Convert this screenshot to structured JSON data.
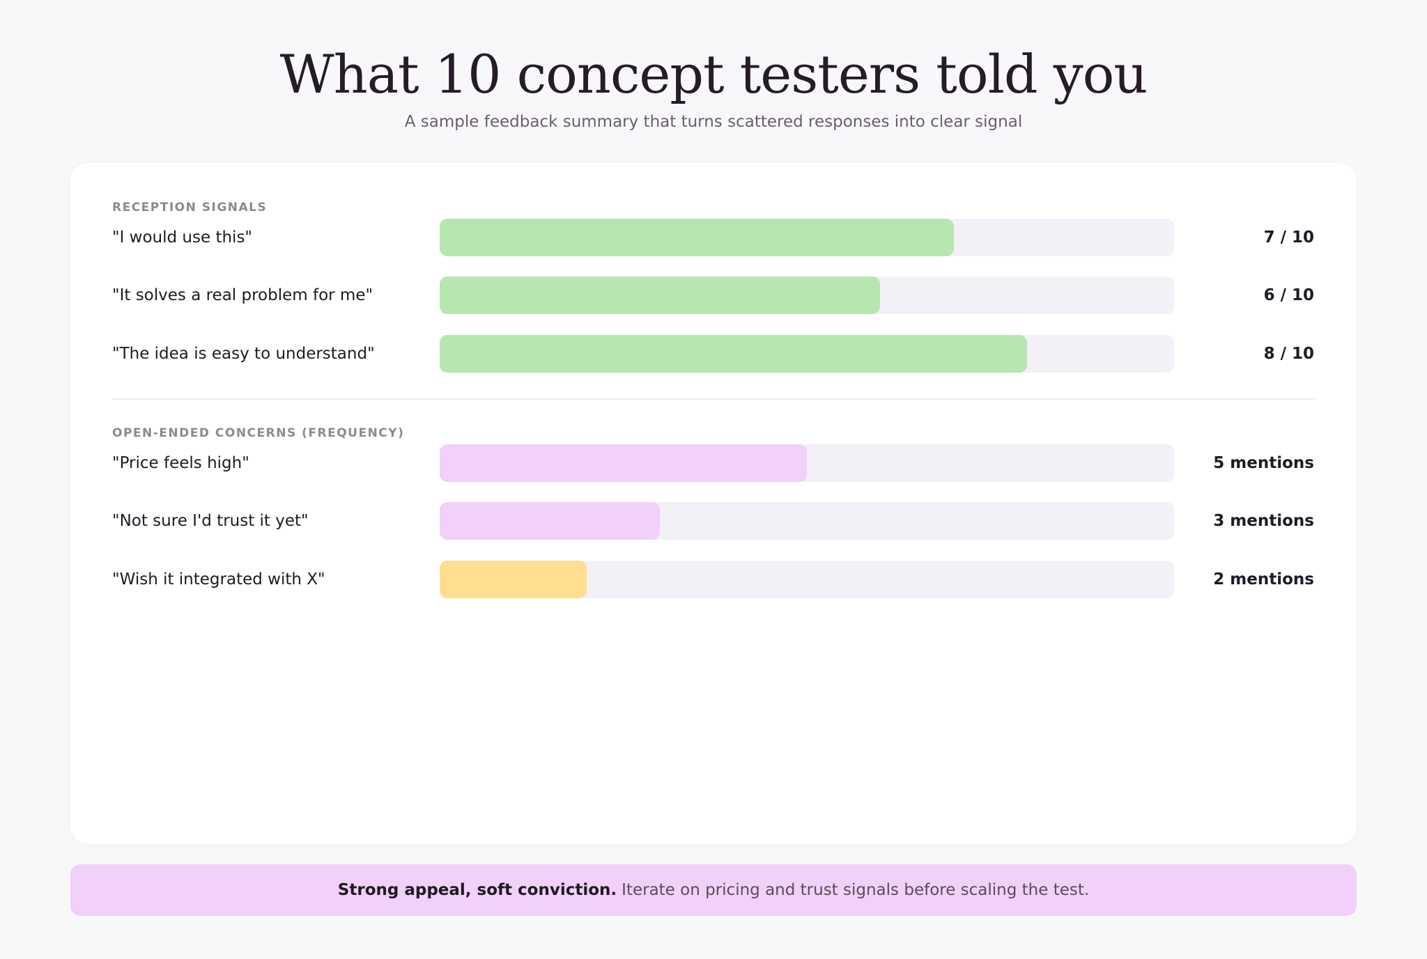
{
  "header": {
    "title": "What 10 concept testers told you",
    "subtitle": "A sample feedback summary that turns scattered responses into clear signal"
  },
  "xlim": [
    0,
    10
  ],
  "sections": [
    {
      "label": "RECEPTION SIGNALS",
      "rows": [
        {
          "label": "\"I would use this\"",
          "value": 7,
          "value_label": "7 / 10",
          "color": "#b7e6b0"
        },
        {
          "label": "\"It solves a real problem for me\"",
          "value": 6,
          "value_label": "6 / 10",
          "color": "#b7e6b0"
        },
        {
          "label": "\"The idea is easy to understand\"",
          "value": 8,
          "value_label": "8 / 10",
          "color": "#b7e6b0"
        }
      ]
    },
    {
      "label": "OPEN-ENDED CONCERNS (FREQUENCY)",
      "rows": [
        {
          "label": "\"Price feels high\"",
          "value": 5,
          "value_label": "5 mentions",
          "color": "#f1d0f9"
        },
        {
          "label": "\"Not sure I'd trust it yet\"",
          "value": 3,
          "value_label": "3 mentions",
          "color": "#f1d0f9"
        },
        {
          "label": "\"Wish it integrated with X\"",
          "value": 2,
          "value_label": "2 mentions",
          "color": "#ffde90"
        }
      ]
    }
  ],
  "footer": {
    "bold": "Strong appeal, soft conviction.",
    "text": "Iterate on pricing and trust signals before scaling the test."
  }
}
